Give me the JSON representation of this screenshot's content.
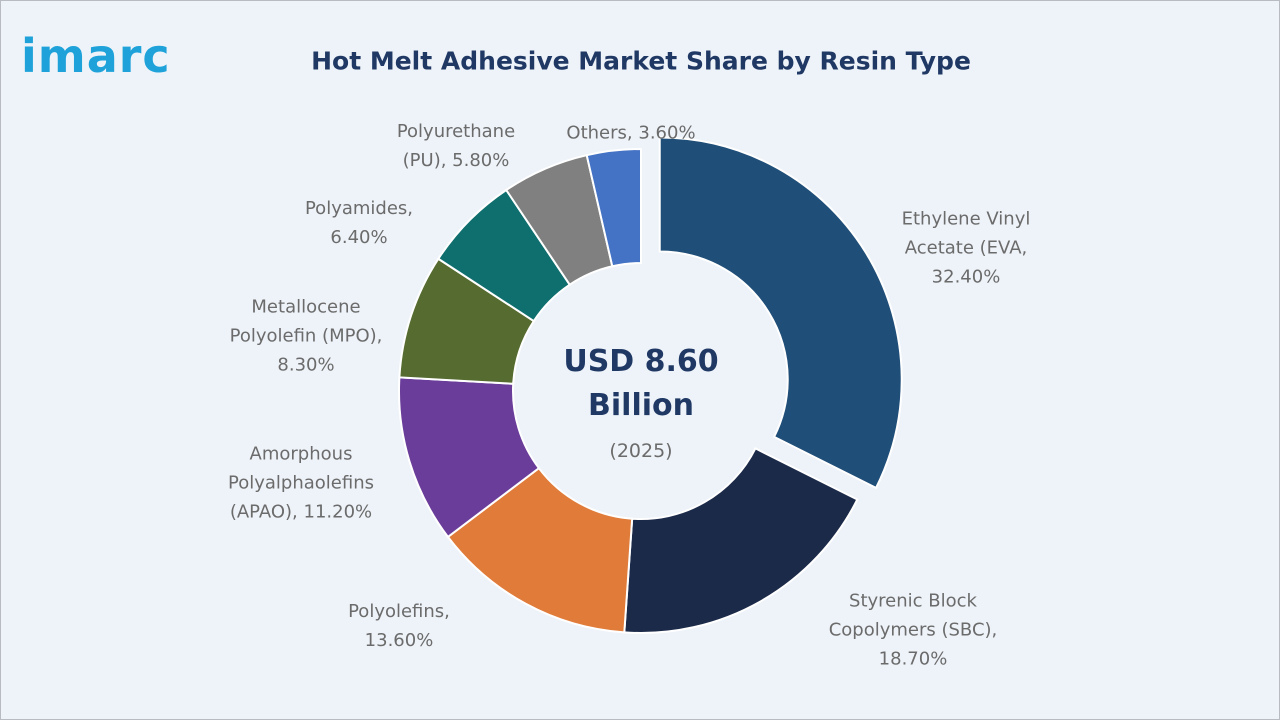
{
  "logo": "imarc",
  "chart_data": {
    "type": "pie",
    "donut": true,
    "title": "Hot Melt Adhesive Market Share by Resin Type",
    "center_label": "USD 8.60 Billion",
    "center_sublabel": "(2025)",
    "categories": [
      "Ethylene Vinyl Acetate (EVA,",
      "Styrenic Block Copolymers (SBC),",
      "Polyolefins,",
      "Amorphous Polyalphaolefins (APAO),",
      "Metallocene Polyolefin (MPO),",
      "Polyamides,",
      "Polyurethane (PU),",
      "Others,"
    ],
    "values": [
      32.4,
      18.7,
      13.6,
      11.2,
      8.3,
      6.4,
      5.8,
      3.6
    ],
    "value_labels": [
      "32.40%",
      "18.70%",
      "13.60%",
      "11.20%",
      "8.30%",
      "6.40%",
      "5.80%",
      "3.60%"
    ],
    "colors": [
      "#1f4e79",
      "#1c2a4a",
      "#e07b39",
      "#6a3d9a",
      "#556b2f",
      "#0f6e6e",
      "#808080",
      "#4472c4"
    ]
  }
}
